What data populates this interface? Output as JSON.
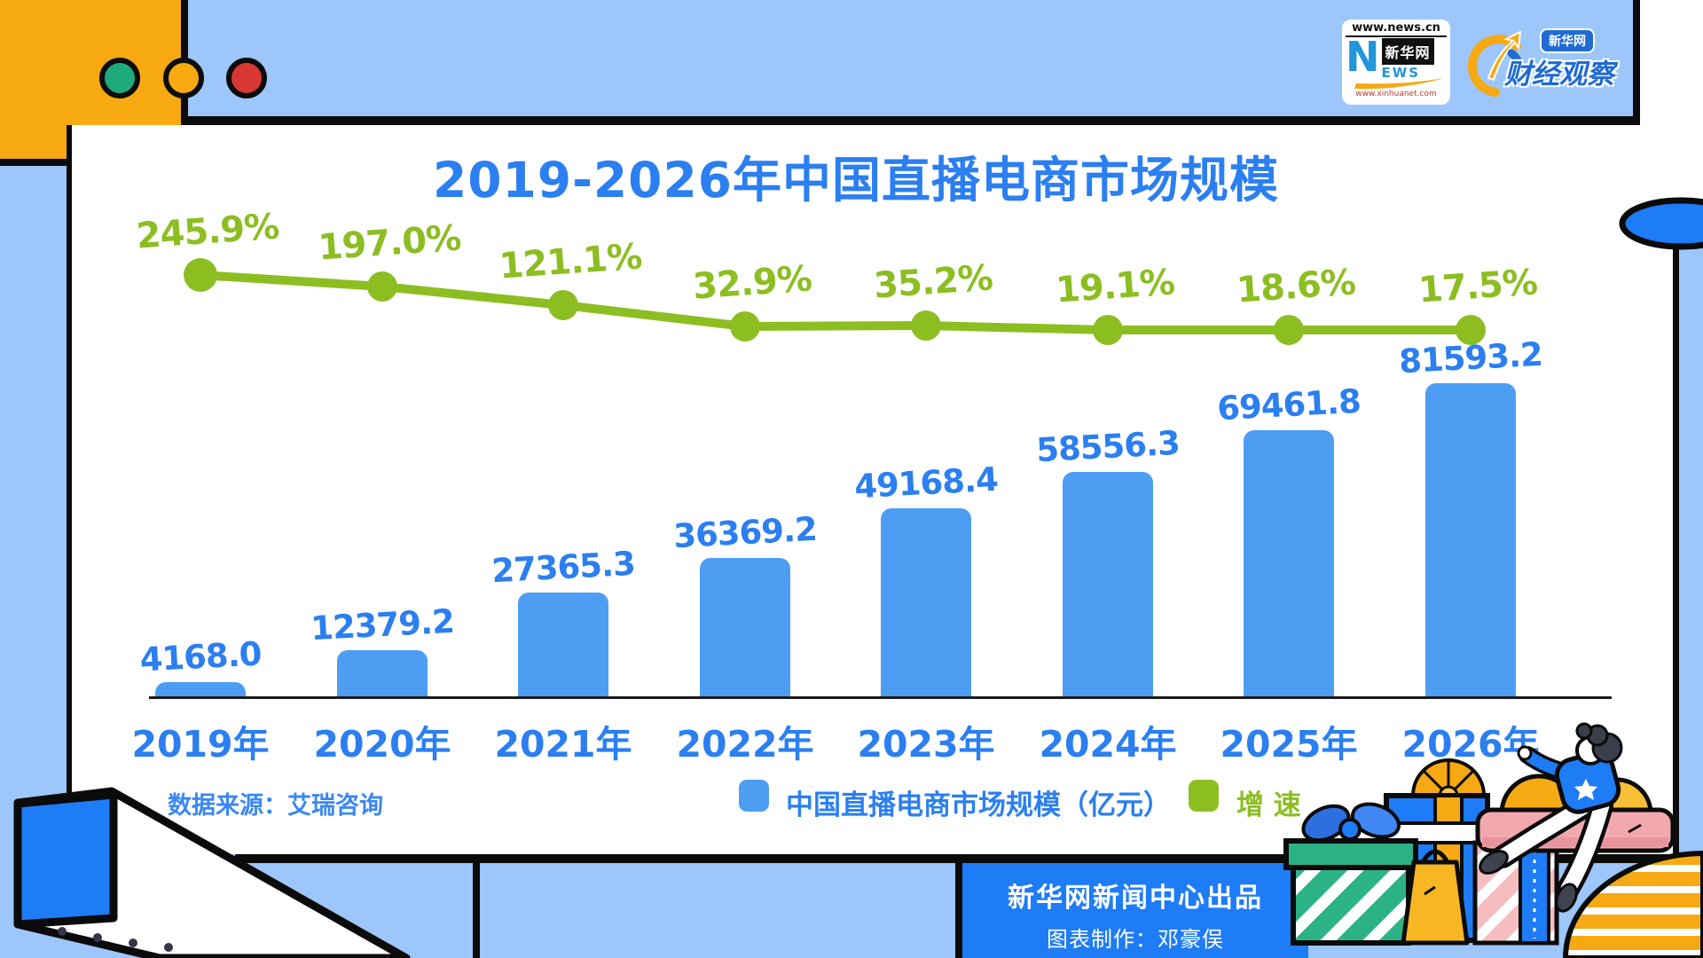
{
  "window": {
    "circles": [
      {
        "name": "green",
        "color": "#1FAA7E"
      },
      {
        "name": "yellow",
        "color": "#F6AA0F"
      },
      {
        "name": "red",
        "color": "#D93832"
      }
    ]
  },
  "logos": {
    "xinhua": {
      "top_url": "www.news.cn",
      "letter_n": "N",
      "letters_ews": "EWS",
      "name": "新华网",
      "bottom_url": "www.xinhuanet.com"
    },
    "caijing": {
      "badge": "新华网",
      "name": "财经观察"
    }
  },
  "chart_data": {
    "type": "bar",
    "title": "2019-2026年中国直播电商市场规模",
    "categories": [
      "2019年",
      "2020年",
      "2021年",
      "2022年",
      "2023年",
      "2024年",
      "2025年",
      "2026年"
    ],
    "series": [
      {
        "name": "中国直播电商市场规模（亿元）",
        "type": "bar",
        "values": [
          4168.0,
          12379.2,
          27365.3,
          36369.2,
          49168.4,
          58556.3,
          69461.8,
          81593.2
        ],
        "color": "#4D9EF3"
      },
      {
        "name": "增速",
        "type": "line",
        "unit": "%",
        "values": [
          245.9,
          197.0,
          121.1,
          32.9,
          35.2,
          19.1,
          18.6,
          17.5
        ],
        "color": "#8CBE22"
      }
    ],
    "value_labels": [
      "4168.0",
      "12379.2",
      "27365.3",
      "36369.2",
      "49168.4",
      "58556.3",
      "69461.8",
      "81593.2"
    ],
    "growth_labels": [
      "245.9%",
      "197.0%",
      "121.1%",
      "32.9%",
      "35.2%",
      "19.1%",
      "18.6%",
      "17.5%"
    ],
    "ylim": [
      0,
      81593.2
    ],
    "grid": false,
    "legend_position": "bottom"
  },
  "source": {
    "label": "数据来源：艾瑞咨询"
  },
  "legend": [
    {
      "label": "中国直播电商市场规模（亿元）",
      "color": "#4D9EF3"
    },
    {
      "label": "增 速",
      "color": "#8CBE22"
    }
  ],
  "footer": {
    "line1": "新华网新闻中心出品",
    "line2": "图表制作：邓豪俣"
  },
  "colors": {
    "background": "#9DC6FB",
    "card": "#FFFFFF",
    "bar": "#4D9EF3",
    "line": "#8CBE22",
    "text_blue": "#2B7FF0",
    "accent_blue": "#1E7CF6",
    "accent_yellow": "#F6AA0F",
    "accent_pink": "#F2A9AE",
    "accent_teal": "#2BB287"
  }
}
